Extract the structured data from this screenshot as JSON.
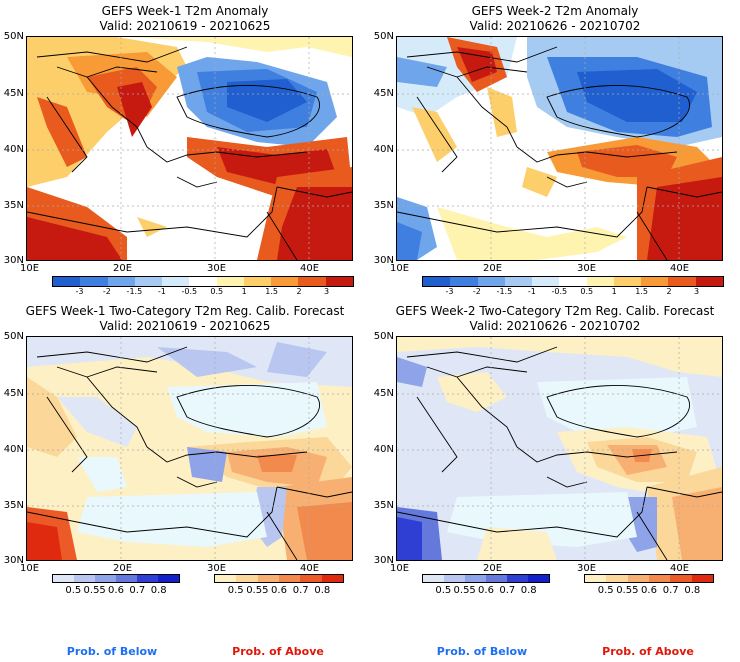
{
  "panels": [
    {
      "title": "GEFS Week-1 T2m Anomaly",
      "valid": "Valid: 20210619 - 20210625",
      "type": "anomaly"
    },
    {
      "title": "GEFS Week-2 T2m Anomaly",
      "valid": "Valid: 20210626 - 20210702",
      "type": "anomaly"
    },
    {
      "title": "GEFS Week-1 Two-Category T2m Reg. Calib. Forecast",
      "valid": "Valid: 20210619 - 20210625",
      "type": "prob"
    },
    {
      "title": "GEFS Week-2 Two-Category T2m Reg. Calib. Forecast",
      "valid": "Valid: 20210626 - 20210702",
      "type": "prob"
    }
  ],
  "axes": {
    "lat_labels": [
      "50N",
      "45N",
      "40N",
      "35N",
      "30N"
    ],
    "lon_labels": [
      "10E",
      "20E",
      "30E",
      "40E"
    ]
  },
  "anomaly_colorbar": {
    "labels": [
      "-3",
      "-2",
      "-1.5",
      "-1",
      "-0.5",
      "0.5",
      "1",
      "1.5",
      "2",
      "3"
    ],
    "colors": [
      "#1f5fcf",
      "#3f7fdf",
      "#6fa5ea",
      "#a6cbf2",
      "#d6ebfa",
      "#ffffff",
      "#fff3b0",
      "#fdcf6a",
      "#f89a35",
      "#e85a1e",
      "#c61a10"
    ]
  },
  "prob_below_colorbar": {
    "labels": [
      "0.5",
      "0.55",
      "0.6",
      "0.7",
      "0.8"
    ],
    "colors": [
      "#dfe6f6",
      "#b8c6f0",
      "#8fa3e8",
      "#6579dd",
      "#2f3fd3",
      "#1420c8"
    ]
  },
  "prob_above_colorbar": {
    "labels": [
      "0.5",
      "0.55",
      "0.6",
      "0.7",
      "0.8"
    ],
    "colors": [
      "#fdf0c4",
      "#fbd79a",
      "#f7b072",
      "#f28a4e",
      "#ec5a28",
      "#e02a10"
    ]
  },
  "legend": {
    "below": "Prob. of Below",
    "above": "Prob. of Above",
    "below_color": "#1e6ff0",
    "above_color": "#e0180c"
  }
}
